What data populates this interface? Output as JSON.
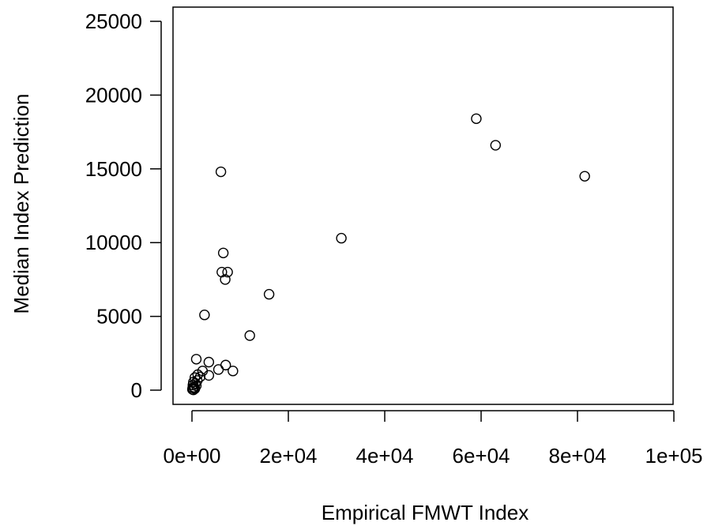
{
  "chart_data": {
    "type": "scatter",
    "title": "",
    "xlabel": "Empirical FMWT Index",
    "ylabel": "Median Index Prediction",
    "xlim": [
      0,
      100000
    ],
    "ylim": [
      0,
      25000
    ],
    "grid": false,
    "legend": "none",
    "marker": "open-circle",
    "x_ticks": [
      {
        "value": 0,
        "label": "0e+00"
      },
      {
        "value": 20000,
        "label": "2e+04"
      },
      {
        "value": 40000,
        "label": "4e+04"
      },
      {
        "value": 60000,
        "label": "6e+04"
      },
      {
        "value": 80000,
        "label": "8e+04"
      },
      {
        "value": 100000,
        "label": "1e+05"
      }
    ],
    "y_ticks": [
      {
        "value": 0,
        "label": "0"
      },
      {
        "value": 5000,
        "label": "5000"
      },
      {
        "value": 10000,
        "label": "10000"
      },
      {
        "value": 15000,
        "label": "15000"
      },
      {
        "value": 20000,
        "label": "20000"
      },
      {
        "value": 25000,
        "label": "25000"
      }
    ],
    "points": [
      {
        "x": 59000,
        "y": 18400
      },
      {
        "x": 63000,
        "y": 16600
      },
      {
        "x": 81500,
        "y": 14500
      },
      {
        "x": 6000,
        "y": 14800
      },
      {
        "x": 31000,
        "y": 10300
      },
      {
        "x": 6500,
        "y": 9300
      },
      {
        "x": 6200,
        "y": 8000
      },
      {
        "x": 7400,
        "y": 8000
      },
      {
        "x": 6900,
        "y": 7500
      },
      {
        "x": 16000,
        "y": 6500
      },
      {
        "x": 2600,
        "y": 5100
      },
      {
        "x": 12000,
        "y": 3700
      },
      {
        "x": 900,
        "y": 2100
      },
      {
        "x": 3500,
        "y": 1900
      },
      {
        "x": 7000,
        "y": 1700
      },
      {
        "x": 5500,
        "y": 1400
      },
      {
        "x": 8500,
        "y": 1300
      },
      {
        "x": 2200,
        "y": 1300
      },
      {
        "x": 3500,
        "y": 1000
      },
      {
        "x": 1200,
        "y": 1050
      },
      {
        "x": 1700,
        "y": 900
      },
      {
        "x": 600,
        "y": 850
      },
      {
        "x": 1100,
        "y": 650
      },
      {
        "x": 300,
        "y": 550
      },
      {
        "x": 700,
        "y": 450
      },
      {
        "x": 200,
        "y": 350
      },
      {
        "x": 900,
        "y": 300
      },
      {
        "x": 400,
        "y": 200
      },
      {
        "x": 150,
        "y": 150
      },
      {
        "x": 600,
        "y": 100
      },
      {
        "x": 100,
        "y": 50
      },
      {
        "x": 300,
        "y": 20
      }
    ]
  }
}
